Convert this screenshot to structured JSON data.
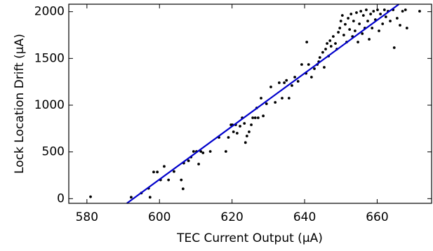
{
  "chart_data": {
    "type": "scatter",
    "xlabel": "TEC Current Output (μA)",
    "ylabel": "Lock Location Drift (μA)",
    "x": [
      581,
      592.2,
      595,
      597,
      597.4,
      598.4,
      599.4,
      600.3,
      601.3,
      602.5,
      604,
      606,
      606.5,
      606.7,
      608,
      608.7,
      609.4,
      610.2,
      610.8,
      611.4,
      612,
      614,
      616.4,
      618.3,
      619,
      619.7,
      620.1,
      620.4,
      621,
      621.4,
      622.2,
      622.8,
      623.4,
      623.7,
      624.1,
      624.7,
      625.3,
      625.7,
      626.4,
      626.8,
      627.2,
      628,
      628.6,
      629.5,
      630.7,
      631.9,
      633,
      633.8,
      634.4,
      635,
      635.7,
      636.5,
      637.3,
      638.2,
      639.2,
      640.4,
      641.1,
      641.9,
      642.7,
      643.5,
      644.2,
      645,
      645.8,
      646.2,
      647,
      647.3,
      647.9,
      648.5,
      648.9,
      649.3,
      649.7,
      650,
      650.4,
      650.8,
      651.2,
      651.6,
      652,
      652.4,
      652.8,
      653.2,
      653.5,
      653.9,
      654.3,
      654.7,
      655.1,
      655.5,
      655.9,
      656.2,
      656.6,
      657,
      657.4,
      657.8,
      658.2,
      658.6,
      659,
      659.5,
      660.1,
      660.5,
      660.9,
      661.5,
      662,
      662.4,
      663,
      663.6,
      664.4,
      664.7,
      665.5,
      666.3,
      667,
      667.8,
      668.2,
      671.7,
      645.4,
      646.6,
      640.6,
      643.9
    ],
    "values": [
      20,
      15,
      60,
      110,
      15,
      285,
      285,
      200,
      345,
      200,
      290,
      200,
      105,
      380,
      405,
      445,
      505,
      505,
      370,
      505,
      490,
      505,
      655,
      505,
      655,
      790,
      790,
      715,
      790,
      700,
      775,
      865,
      805,
      600,
      670,
      715,
      790,
      865,
      865,
      970,
      865,
      1075,
      885,
      1015,
      1195,
      1030,
      1240,
      1075,
      1240,
      1265,
      1075,
      1210,
      1300,
      1255,
      1435,
      1340,
      1435,
      1300,
      1390,
      1435,
      1510,
      1565,
      1600,
      1660,
      1690,
      1630,
      1735,
      1660,
      1600,
      1780,
      1825,
      1900,
      1960,
      1750,
      1865,
      1675,
      1930,
      1810,
      1975,
      1735,
      1900,
      1795,
      1990,
      1675,
      1870,
      2005,
      1765,
      1960,
      1825,
      2020,
      1900,
      1705,
      1975,
      1825,
      2005,
      1915,
      2020,
      1795,
      1975,
      1870,
      2020,
      1945,
      2005,
      1900,
      2020,
      1615,
      1930,
      1855,
      2005,
      2020,
      1825,
      2005,
      1405,
      1525,
      1675,
      1465
    ],
    "color": "#000000",
    "fit": {
      "x": [
        591,
        666
      ],
      "values": [
        -50,
        2080
      ],
      "color": "#0000cc"
    },
    "xlim": [
      575,
      675
    ],
    "xticks": [
      580,
      600,
      620,
      640,
      660
    ],
    "ylim": [
      -50,
      2080
    ],
    "yticks": [
      0,
      500,
      1000,
      1500,
      2000
    ]
  }
}
